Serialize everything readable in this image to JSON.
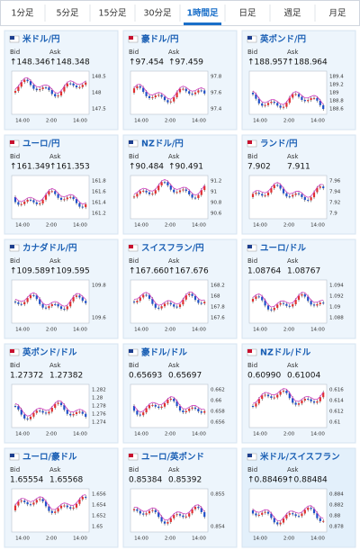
{
  "tabs": [
    "1分足",
    "5分足",
    "15分足",
    "30分足",
    "1時間足",
    "日足",
    "週足",
    "月足"
  ],
  "active_tab": 4,
  "cards": [
    {
      "name": "米ドル/円",
      "bid_label": "Bid",
      "ask_label": "Ask",
      "bid": "↑148.346",
      "ask": "↑148.348",
      "yticks": [
        "148.5",
        "148",
        "147.5"
      ],
      "times": [
        "14:00",
        "2:00",
        "14:00"
      ]
    },
    {
      "name": "豪ドル/円",
      "bid_label": "Bid",
      "ask_label": "Ask",
      "bid": "↑97.454",
      "ask": "↑97.459",
      "yticks": [
        "97.8",
        "97.6",
        "97.4"
      ],
      "times": [
        "14:00",
        "2:00",
        "14:00"
      ]
    },
    {
      "name": "英ポンド/円",
      "bid_label": "Bid",
      "ask_label": "Ask",
      "bid": "↑188.957",
      "ask": "↑188.964",
      "yticks": [
        "189.4",
        "189.2",
        "189",
        "188.8",
        "188.6"
      ],
      "times": [
        "14:00",
        "2:00",
        "14:00"
      ]
    },
    {
      "name": "ユーロ/円",
      "bid_label": "Bid",
      "ask_label": "Ask",
      "bid": "↑161.349",
      "ask": "↑161.353",
      "yticks": [
        "161.8",
        "161.6",
        "161.4",
        "161.2"
      ],
      "times": [
        "14:00",
        "2:00",
        "14:00"
      ]
    },
    {
      "name": "NZドル/円",
      "bid_label": "Bid",
      "ask_label": "Ask",
      "bid": "↑90.484",
      "ask": "↑90.491",
      "yticks": [
        "91.2",
        "91",
        "90.8",
        "90.6"
      ],
      "times": [
        "14:00",
        "2:00",
        "14:00"
      ]
    },
    {
      "name": "ランド/円",
      "bid_label": "Bid",
      "ask_label": "Ask",
      "bid": "7.902",
      "ask": "7.911",
      "yticks": [
        "7.96",
        "7.94",
        "7.92",
        "7.9"
      ],
      "times": [
        "14:00",
        "2:00",
        "14:00"
      ]
    },
    {
      "name": "カナダドル/円",
      "bid_label": "Bid",
      "ask_label": "Ask",
      "bid": "↑109.589",
      "ask": "↑109.595",
      "yticks": [
        "109.8",
        "109.6"
      ],
      "times": [
        "14:00",
        "2:00",
        "14:00"
      ]
    },
    {
      "name": "スイスフラン/円",
      "bid_label": "Bid",
      "ask_label": "Ask",
      "bid": "↑167.660",
      "ask": "↑167.676",
      "yticks": [
        "168.2",
        "168",
        "167.8",
        "167.6"
      ],
      "times": [
        "14:00",
        "2:00",
        "14:00"
      ]
    },
    {
      "name": "ユーロ/ドル",
      "bid_label": "Bid",
      "ask_label": "Ask",
      "bid": "1.08764",
      "ask": "1.08767",
      "yticks": [
        "1.094",
        "1.092",
        "1.09",
        "1.088"
      ],
      "times": [
        "14:00",
        "2:00",
        "14:00"
      ]
    },
    {
      "name": "英ポンド/ドル",
      "bid_label": "Bid",
      "ask_label": "Ask",
      "bid": "1.27372",
      "ask": "1.27382",
      "yticks": [
        "1.282",
        "1.28",
        "1.278",
        "1.276",
        "1.274"
      ],
      "times": [
        "14:00",
        "2:00",
        "14:00"
      ]
    },
    {
      "name": "豪ドル/ドル",
      "bid_label": "Bid",
      "ask_label": "Ask",
      "bid": "0.65693",
      "ask": "0.65697",
      "yticks": [
        "0.662",
        "0.66",
        "0.658",
        "0.656"
      ],
      "times": [
        "14:00",
        "2:00",
        "14:00"
      ]
    },
    {
      "name": "NZドル/ドル",
      "bid_label": "Bid",
      "ask_label": "Ask",
      "bid": "0.60990",
      "ask": "0.61004",
      "yticks": [
        "0.616",
        "0.614",
        "0.612",
        "0.61"
      ],
      "times": [
        "14:00",
        "2:00",
        "14:00"
      ]
    },
    {
      "name": "ユーロ/豪ドル",
      "bid_label": "Bid",
      "ask_label": "Ask",
      "bid": "1.65554",
      "ask": "1.65568",
      "yticks": [
        "1.656",
        "1.654",
        "1.652",
        "1.65"
      ],
      "times": [
        "14:00",
        "2:00",
        "14:00"
      ]
    },
    {
      "name": "ユーロ/英ポンド",
      "bid_label": "Bid",
      "ask_label": "Ask",
      "bid": "0.85384",
      "ask": "0.85392",
      "yticks": [
        "0.855",
        "0.854"
      ],
      "times": [
        "14:00",
        "2:00",
        "14:00"
      ]
    },
    {
      "name": "米ドル/スイスフラン",
      "bid_label": "Bid",
      "ask_label": "Ask",
      "bid": "↑0.88469",
      "ask": "↑0.88484",
      "yticks": [
        "0.884",
        "0.882",
        "0.88",
        "0.878"
      ],
      "times": [
        "14:00",
        "2:00",
        "14:00"
      ]
    }
  ]
}
